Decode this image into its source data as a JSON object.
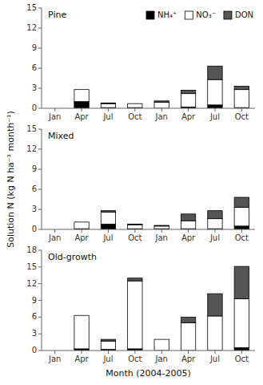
{
  "chart_data": [
    {
      "type": "bar",
      "title": "Pine",
      "stacked": true,
      "legend": "upper right",
      "categories": [
        "Jan",
        "Apr",
        "Jul",
        "Oct",
        "Jan",
        "Apr",
        "Jul",
        "Oct"
      ],
      "series": [
        {
          "name": "NH₄⁺",
          "color": "#000000",
          "values": [
            0.0,
            1.0,
            0.1,
            0.1,
            0.0,
            0.2,
            0.5,
            0.1
          ]
        },
        {
          "name": "NO₃⁻",
          "color": "#ffffff",
          "values": [
            0.0,
            1.8,
            0.6,
            0.6,
            0.9,
            2.0,
            3.8,
            2.7
          ]
        },
        {
          "name": "DON",
          "color": "#555555",
          "values": [
            0.0,
            0.0,
            0.1,
            0.0,
            0.2,
            0.5,
            2.0,
            0.5
          ]
        }
      ],
      "ylim": [
        0,
        15
      ],
      "yticks": [
        0,
        3,
        6,
        9,
        12,
        15
      ]
    },
    {
      "type": "bar",
      "title": "Mixed",
      "stacked": true,
      "y_label": "Solution N (kg N ha⁻¹ month⁻¹)",
      "categories": [
        "Jan",
        "Apr",
        "Jul",
        "Oct",
        "Jan",
        "Apr",
        "Jul",
        "Oct"
      ],
      "series": [
        {
          "color": "#000000",
          "values": [
            0.0,
            0.1,
            0.8,
            0.1,
            0.1,
            0.1,
            0.1,
            0.5
          ]
        },
        {
          "color": "#ffffff",
          "values": [
            0.0,
            1.0,
            1.8,
            0.6,
            0.4,
            1.2,
            1.5,
            2.8
          ]
        },
        {
          "color": "#555555",
          "values": [
            0.0,
            0.0,
            0.2,
            0.1,
            0.1,
            1.0,
            1.2,
            1.5
          ]
        }
      ],
      "ylim": [
        0,
        15
      ],
      "yticks": [
        0,
        3,
        6,
        9,
        12,
        15
      ]
    },
    {
      "type": "bar",
      "title": "Old-growth",
      "stacked": true,
      "x_label": "Month (2004-2005)",
      "categories": [
        "Jan",
        "Apr",
        "Jul",
        "Oct",
        "Jan",
        "Apr",
        "Jul",
        "Oct"
      ],
      "series": [
        {
          "color": "#000000",
          "values": [
            0.0,
            0.3,
            0.2,
            0.3,
            0.0,
            0.0,
            0.0,
            0.5
          ]
        },
        {
          "color": "#ffffff",
          "values": [
            0.0,
            6.0,
            1.5,
            12.2,
            2.0,
            5.0,
            6.2,
            8.8
          ]
        },
        {
          "color": "#555555",
          "values": [
            0.0,
            0.0,
            0.3,
            0.5,
            0.0,
            1.0,
            4.0,
            5.8
          ]
        }
      ],
      "ylim": [
        0,
        18
      ],
      "yticks": [
        0,
        3,
        6,
        9,
        12,
        15,
        18
      ]
    }
  ]
}
